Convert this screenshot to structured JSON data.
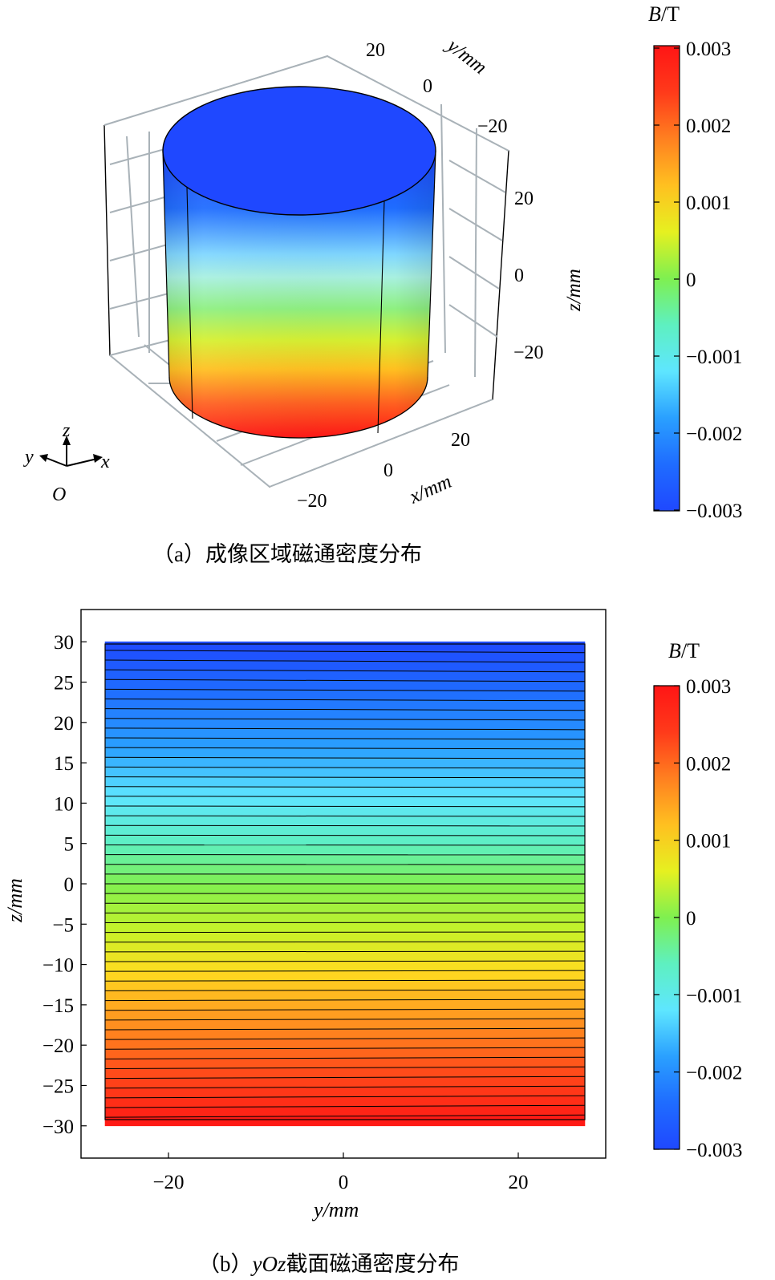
{
  "chart_data": [
    {
      "type": "3d-surface",
      "caption": "（a）成像区域磁通密度分布",
      "axes": {
        "x": {
          "label": "x/mm",
          "ticks": [
            "−20",
            "0",
            "20"
          ],
          "range": [
            -30,
            30
          ]
        },
        "y": {
          "label": "y/mm",
          "ticks": [
            "−20",
            "0",
            "20"
          ],
          "range": [
            -30,
            30
          ]
        },
        "z": {
          "label": "z/mm",
          "ticks": [
            "−20",
            "0",
            "20"
          ],
          "range": [
            -30,
            30
          ]
        }
      },
      "orientation_legend": {
        "z": "z",
        "y": "y",
        "x": "x",
        "origin": "O"
      },
      "field": {
        "B_at_z_top": -0.003,
        "B_at_z_bottom": 0.003,
        "description_units": "T"
      },
      "colorbar": {
        "title_italic": "B",
        "title_unit": "/T",
        "ticks": [
          "0.003",
          "0.002",
          "0.001",
          "0",
          "−0.001",
          "−0.002",
          "−0.003"
        ],
        "range": [
          -0.003,
          0.003
        ],
        "colormap": [
          "#1f48ff",
          "#1f6cff",
          "#2aa0ff",
          "#5ee6ff",
          "#7ff0a0",
          "#9ef540",
          "#e6f020",
          "#ffc020",
          "#ff8020",
          "#ff3a1a",
          "#ff1515"
        ]
      }
    },
    {
      "type": "contour",
      "caption_prefix": "（b）",
      "caption_italic": "yOz",
      "caption_suffix": "截面磁通密度分布",
      "xlabel": "y/mm",
      "ylabel": "z/mm",
      "xticks": [
        "−20",
        "0",
        "20"
      ],
      "xtick_values": [
        -20,
        0,
        20
      ],
      "yticks": [
        "30",
        "25",
        "20",
        "15",
        "10",
        "5",
        "0",
        "−5",
        "−10",
        "−15",
        "−20",
        "−25",
        "−30"
      ],
      "ytick_values": [
        30,
        25,
        20,
        15,
        10,
        5,
        0,
        -5,
        -10,
        -15,
        -20,
        -25,
        -30
      ],
      "xlim": [
        -30,
        30
      ],
      "ylim": [
        -34,
        34
      ],
      "data_extent": {
        "y": [
          -30,
          30
        ],
        "z": [
          -30,
          30
        ]
      },
      "contour_levels": 50,
      "field_at_z30": -0.003,
      "field_at_z_minus30": 0.003,
      "colorbar": {
        "title_italic": "B",
        "title_unit": "/T",
        "ticks": [
          "0.003",
          "0.002",
          "0.001",
          "0",
          "−0.001",
          "−0.002",
          "−0.003"
        ],
        "range": [
          -0.003,
          0.003
        ]
      }
    }
  ]
}
